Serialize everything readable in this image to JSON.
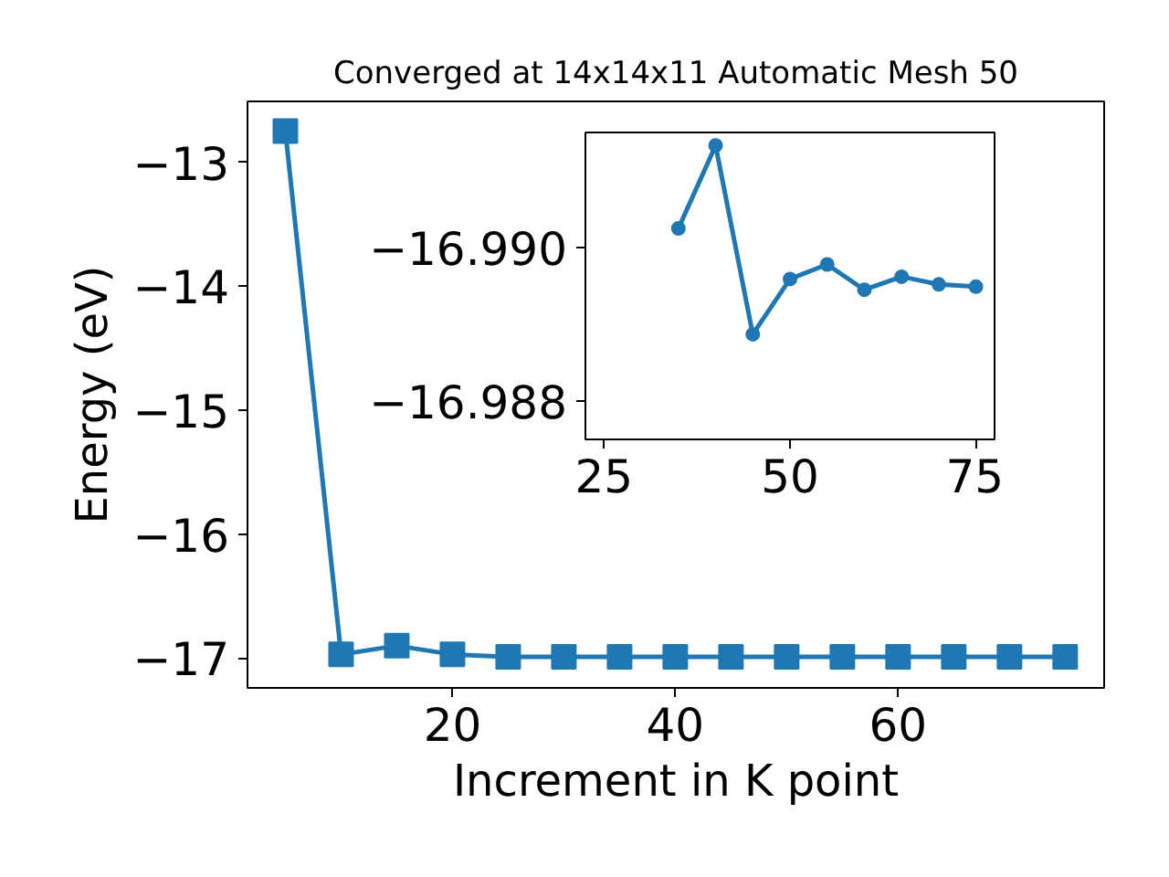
{
  "chart_data": [
    {
      "type": "line",
      "title": "Converged at 14x14x11 Automatic Mesh 50",
      "xlabel": "Increment in K point",
      "ylabel": "Energy (eV)",
      "x": [
        5,
        10,
        15,
        20,
        25,
        30,
        35,
        40,
        45,
        50,
        55,
        60,
        65,
        70,
        75
      ],
      "series": [
        {
          "color": "#1f77b4",
          "values": [
            -12.75,
            -16.97,
            -16.9,
            -16.97,
            -16.99,
            -16.99,
            -16.99,
            -16.99,
            -16.99,
            -16.99,
            -16.99,
            -16.99,
            -16.99,
            -16.99,
            -16.99
          ]
        }
      ],
      "xlim": [
        1.6,
        78.5
      ],
      "ylim": [
        -17.24,
        -12.51
      ],
      "xticks": [
        20,
        40,
        60
      ],
      "yticks": [
        {
          "value": -17,
          "label": "−17"
        },
        {
          "value": -16,
          "label": "−16"
        },
        {
          "value": -15,
          "label": "−15"
        },
        {
          "value": -14,
          "label": "−14"
        },
        {
          "value": -13,
          "label": "−13"
        }
      ],
      "marker": "square",
      "line_style": "solid"
    },
    {
      "type": "line",
      "x": [
        35,
        40,
        45,
        50,
        55,
        60,
        65,
        70,
        75
      ],
      "series": [
        {
          "color": "#1f77b4",
          "values": [
            -16.99025,
            -16.99133,
            -16.98887,
            -16.98959,
            -16.98978,
            -16.98945,
            -16.98962,
            -16.98952,
            -16.98949
          ]
        }
      ],
      "xlim": [
        22.5,
        77.5
      ],
      "ylim": [
        -16.9875,
        -16.9915
      ],
      "xticks": [
        25,
        50,
        75
      ],
      "yticks": [
        {
          "value": -16.99,
          "label": "−16.990"
        },
        {
          "value": -16.988,
          "label": "−16.988"
        }
      ],
      "marker": "circle",
      "line_style": "solid"
    }
  ]
}
